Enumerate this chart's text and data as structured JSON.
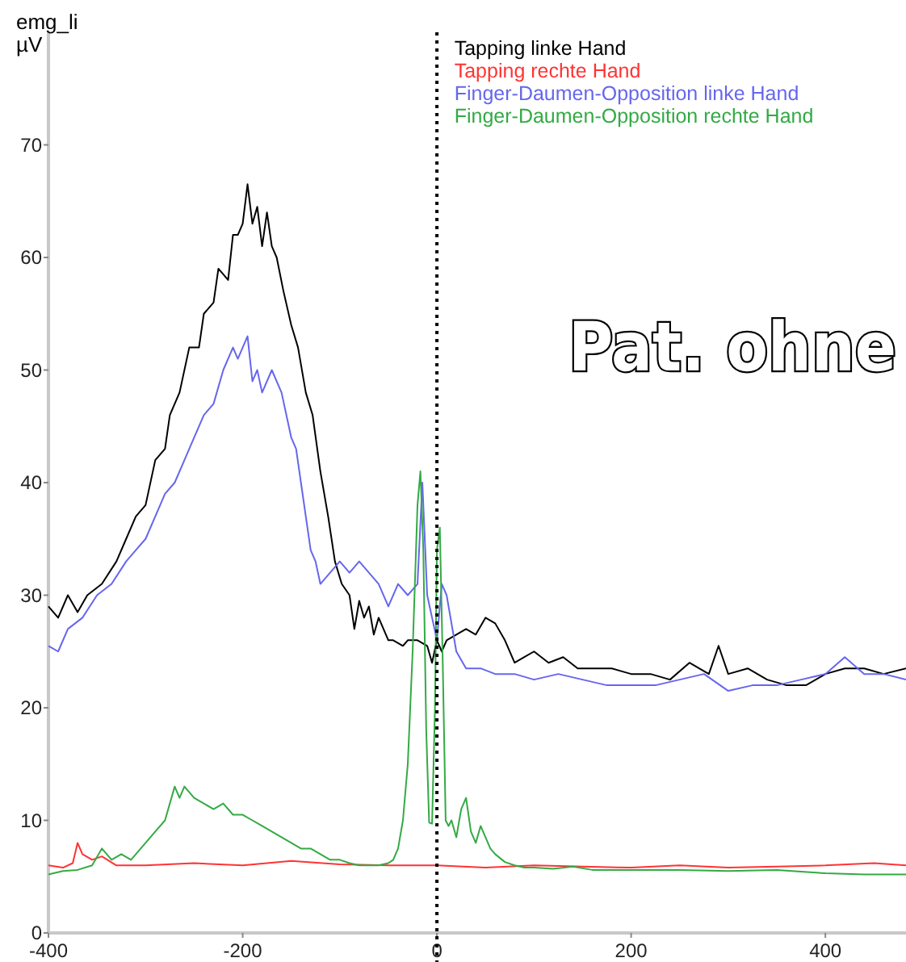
{
  "chart_data": {
    "type": "line",
    "ylabel": "emg_li µV",
    "xlim": [
      -400,
      483
    ],
    "ylim": [
      0,
      80
    ],
    "xticks": [
      -400,
      -200,
      0,
      200,
      400
    ],
    "yticks": [
      0,
      10,
      20,
      30,
      40,
      50,
      60,
      70
    ],
    "grid": false,
    "legend": "top right",
    "marker": "none",
    "line_style": "solid",
    "ref_lines": [
      {
        "axis": "x",
        "value": 0,
        "color": "#000000",
        "line_style": "dotted"
      }
    ],
    "annotations": [
      "Pat. ohne"
    ],
    "series": [
      {
        "name": "Tapping linke Hand",
        "color": "#000000",
        "x": [
          -400,
          -390,
          -380,
          -370,
          -360,
          -345,
          -330,
          -320,
          -310,
          -300,
          -290,
          -280,
          -275,
          -265,
          -255,
          -245,
          -240,
          -230,
          -225,
          -215,
          -210,
          -205,
          -200,
          -195,
          -190,
          -185,
          -180,
          -175,
          -170,
          -165,
          -158,
          -150,
          -143,
          -135,
          -128,
          -120,
          -112,
          -105,
          -98,
          -90,
          -85,
          -80,
          -75,
          -70,
          -65,
          -60,
          -50,
          -45,
          -35,
          -30,
          -20,
          -10,
          -5,
          0,
          5,
          10,
          20,
          30,
          40,
          50,
          60,
          70,
          80,
          90,
          100,
          115,
          130,
          145,
          160,
          180,
          200,
          220,
          240,
          260,
          280,
          290,
          300,
          320,
          340,
          360,
          380,
          400,
          420,
          440,
          460,
          483
        ],
        "values": [
          29,
          28,
          30,
          28.5,
          30,
          31,
          33,
          35,
          37,
          38,
          42,
          43,
          46,
          48,
          52,
          52,
          55,
          56,
          59,
          58,
          62,
          62,
          63,
          66.5,
          63,
          64.5,
          61,
          64,
          61,
          60,
          57,
          54,
          52,
          48,
          46,
          41,
          37,
          33,
          31,
          30,
          27,
          29.5,
          28,
          29,
          26.5,
          28,
          26,
          26,
          25.5,
          26,
          26,
          25.5,
          24,
          26,
          25,
          26,
          26.5,
          27,
          26.5,
          28,
          27.5,
          26,
          24,
          24.5,
          25,
          24,
          24.5,
          23.5,
          23.5,
          23.5,
          23,
          23,
          22.5,
          24,
          23,
          25.5,
          23,
          23.5,
          22.5,
          22,
          22,
          23,
          23.5,
          23.5,
          23,
          23.5
        ]
      },
      {
        "name": "Tapping rechte Hand",
        "color": "#ff3333",
        "x": [
          -400,
          -385,
          -375,
          -370,
          -365,
          -355,
          -345,
          -330,
          -300,
          -250,
          -200,
          -150,
          -100,
          -50,
          0,
          50,
          100,
          150,
          200,
          250,
          300,
          350,
          400,
          450,
          483
        ],
        "values": [
          6,
          5.8,
          6.2,
          8,
          7,
          6.5,
          6.8,
          6,
          6,
          6.2,
          6,
          6.4,
          6.1,
          6,
          6,
          5.8,
          6,
          5.9,
          5.8,
          6,
          5.8,
          5.9,
          6,
          6.2,
          6
        ]
      },
      {
        "name": "Finger-Daumen-Opposition linke Hand",
        "color": "#6666ee",
        "x": [
          -400,
          -390,
          -380,
          -365,
          -350,
          -335,
          -320,
          -310,
          -300,
          -290,
          -280,
          -270,
          -260,
          -250,
          -240,
          -230,
          -220,
          -210,
          -205,
          -200,
          -195,
          -190,
          -185,
          -180,
          -170,
          -160,
          -150,
          -145,
          -140,
          -135,
          -130,
          -125,
          -120,
          -110,
          -100,
          -90,
          -80,
          -70,
          -60,
          -50,
          -40,
          -30,
          -20,
          -15,
          -10,
          -5,
          0,
          5,
          10,
          20,
          30,
          45,
          60,
          80,
          100,
          125,
          150,
          175,
          200,
          225,
          250,
          275,
          300,
          325,
          350,
          375,
          400,
          420,
          440,
          460,
          483
        ],
        "values": [
          25.5,
          25,
          27,
          28,
          30,
          31,
          33,
          34,
          35,
          37,
          39,
          40,
          42,
          44,
          46,
          47,
          50,
          52,
          51,
          52,
          53,
          49,
          50,
          48,
          50,
          48,
          44,
          43,
          40,
          37,
          34,
          33,
          31,
          32,
          33,
          32,
          33,
          32,
          31,
          29,
          31,
          30,
          31,
          40,
          30,
          28,
          26,
          31,
          30,
          25,
          23.5,
          23.5,
          23,
          23,
          22.5,
          23,
          22.5,
          22,
          22,
          22,
          22.5,
          23,
          21.5,
          22,
          22,
          22.5,
          23,
          24.5,
          23,
          23,
          22.5
        ]
      },
      {
        "name": "Finger-Daumen-Opposition rechte Hand",
        "color": "#33aa44",
        "x": [
          -400,
          -385,
          -370,
          -355,
          -345,
          -335,
          -325,
          -315,
          -300,
          -290,
          -280,
          -270,
          -265,
          -260,
          -250,
          -240,
          -230,
          -220,
          -210,
          -200,
          -190,
          -180,
          -170,
          -160,
          -150,
          -140,
          -130,
          -120,
          -110,
          -100,
          -90,
          -80,
          -70,
          -60,
          -50,
          -45,
          -40,
          -35,
          -30,
          -25,
          -20,
          -17,
          -14,
          -11,
          -8,
          -5,
          -2,
          0,
          3,
          6,
          9,
          12,
          15,
          20,
          25,
          30,
          35,
          40,
          45,
          50,
          55,
          60,
          70,
          80,
          90,
          100,
          120,
          140,
          160,
          200,
          250,
          300,
          350,
          400,
          440,
          483
        ],
        "values": [
          5.2,
          5.5,
          5.6,
          6,
          7.5,
          6.5,
          7,
          6.5,
          8,
          9,
          10,
          13,
          12,
          13,
          12,
          11.5,
          11,
          11.5,
          10.5,
          10.5,
          10,
          9.5,
          9,
          8.5,
          8,
          7.5,
          7.5,
          7,
          6.5,
          6.5,
          6.2,
          6,
          6,
          6,
          6.2,
          6.5,
          7.5,
          10,
          15,
          25,
          38,
          41,
          34,
          18,
          9.8,
          9.7,
          20,
          34,
          36,
          24,
          10,
          9.5,
          10,
          8.5,
          11,
          12,
          9,
          8,
          9.5,
          8.5,
          7.5,
          7,
          6.3,
          6,
          5.8,
          5.8,
          5.7,
          5.9,
          5.6,
          5.6,
          5.6,
          5.5,
          5.6,
          5.3,
          5.2,
          5.2
        ]
      }
    ]
  }
}
